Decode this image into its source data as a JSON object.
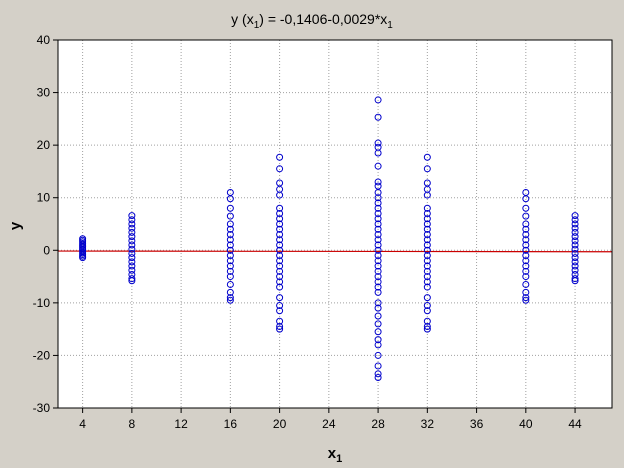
{
  "chart_data": {
    "type": "scatter",
    "title_parts": [
      "y (x",
      "1",
      ") = -0,1406-0,0029*x",
      "1"
    ],
    "xlabel_parts": [
      "x",
      "1"
    ],
    "ylabel": "y",
    "xlim": [
      2,
      47
    ],
    "ylim": [
      -30,
      40
    ],
    "xticks": [
      4,
      8,
      12,
      16,
      20,
      24,
      28,
      32,
      36,
      40,
      44
    ],
    "yticks": [
      -30,
      -20,
      -10,
      0,
      10,
      20,
      30,
      40
    ],
    "grid": true,
    "marker_color": "#0000cc",
    "line_color": "#cc0000",
    "regression": {
      "intercept": -0.1406,
      "slope": -0.0029,
      "x_range": [
        2,
        47
      ]
    },
    "points": [
      {
        "x": 4,
        "y": [
          2.2,
          1.9,
          1.6,
          1.3,
          1.0,
          0.7,
          0.4,
          0.1,
          -0.2,
          -0.5,
          -0.8,
          -1.1,
          -1.4
        ]
      },
      {
        "x": 8,
        "y": [
          6.6,
          5.8,
          5.0,
          4.2,
          3.4,
          2.6,
          1.8,
          1.0,
          0.2,
          -0.6,
          -1.4,
          -2.2,
          -3.0,
          -3.8,
          -4.6,
          -5.4,
          -5.8
        ]
      },
      {
        "x": 16,
        "y": [
          11.0,
          9.8,
          8.0,
          6.5,
          5.0,
          4.0,
          3.0,
          2.0,
          1.0,
          0.0,
          -1.0,
          -2.0,
          -3.0,
          -4.0,
          -5.0,
          -6.5,
          -8.0,
          -9.0,
          -9.5
        ]
      },
      {
        "x": 20,
        "y": [
          17.7,
          15.5,
          12.8,
          11.6,
          10.5,
          8.0,
          7.0,
          6.0,
          5.0,
          4.0,
          3.0,
          2.0,
          1.0,
          0.0,
          -1.0,
          -2.0,
          -3.0,
          -4.0,
          -5.0,
          -6.0,
          -7.0,
          -9.0,
          -10.5,
          -11.5,
          -13.5,
          -14.5,
          -15.0
        ]
      },
      {
        "x": 28,
        "y": [
          28.6,
          25.3,
          20.4,
          19.6,
          18.5,
          16.0,
          13.0,
          12.2,
          11.0,
          10.0,
          9.0,
          8.0,
          7.0,
          6.0,
          5.0,
          4.0,
          3.0,
          2.0,
          1.0,
          0.0,
          -1.0,
          -2.0,
          -3.0,
          -4.0,
          -5.0,
          -6.0,
          -7.0,
          -8.0,
          -10.0,
          -11.0,
          -12.5,
          -14.0,
          -15.5,
          -17.0,
          -18.0,
          -20.0,
          -22.0,
          -23.5,
          -24.2
        ]
      },
      {
        "x": 32,
        "y": [
          17.7,
          15.5,
          12.8,
          11.6,
          10.5,
          8.0,
          7.0,
          6.0,
          5.0,
          4.0,
          3.0,
          2.0,
          1.0,
          0.0,
          -1.0,
          -2.0,
          -3.0,
          -4.0,
          -5.0,
          -6.0,
          -7.0,
          -9.0,
          -10.5,
          -11.5,
          -13.5,
          -14.5,
          -15.0
        ]
      },
      {
        "x": 40,
        "y": [
          11.0,
          9.8,
          8.0,
          6.5,
          5.0,
          4.0,
          3.0,
          2.0,
          1.0,
          0.0,
          -1.0,
          -2.0,
          -3.0,
          -4.0,
          -5.0,
          -6.5,
          -8.0,
          -9.0,
          -9.5
        ]
      },
      {
        "x": 44,
        "y": [
          6.6,
          5.8,
          5.0,
          4.2,
          3.4,
          2.6,
          1.8,
          1.0,
          0.2,
          -0.6,
          -1.4,
          -2.2,
          -3.0,
          -3.8,
          -4.6,
          -5.4,
          -5.8
        ]
      }
    ]
  }
}
